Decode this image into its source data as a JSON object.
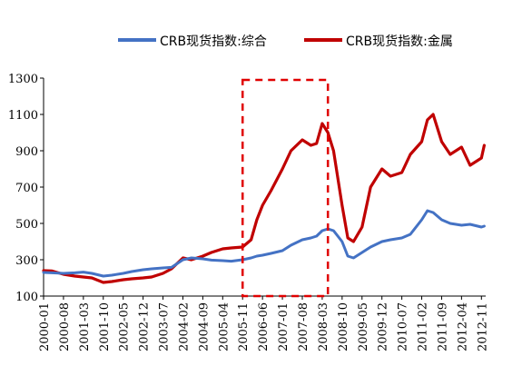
{
  "chart_data": {
    "type": "line",
    "title": "",
    "xlabel": "",
    "ylabel": "",
    "ylim": [
      100,
      1300
    ],
    "y_ticks": [
      "100",
      "300",
      "500",
      "700",
      "900",
      "1100",
      "1300"
    ],
    "x_tick_labels": [
      "2000-01",
      "2000-08",
      "2001-03",
      "2001-10",
      "2002-05",
      "2002-12",
      "2003-07",
      "2004-02",
      "2004-09",
      "2005-04",
      "2005-11",
      "2006-06",
      "2007-01",
      "2007-08",
      "2008-03",
      "2008-10",
      "2009-05",
      "2009-12",
      "2010-07",
      "2011-02",
      "2011-09",
      "2012-04",
      "2012-11"
    ],
    "grid": false,
    "legend_position": "top",
    "highlight_box": {
      "x_start": "2005-11",
      "x_end": "2008-05",
      "y_start": 100,
      "y_end": 1290,
      "color": "#e00000",
      "style": "dashed"
    },
    "x": [
      "2000-01",
      "2000-04",
      "2000-08",
      "2000-12",
      "2001-03",
      "2001-06",
      "2001-10",
      "2002-01",
      "2002-05",
      "2002-08",
      "2002-12",
      "2003-03",
      "2003-07",
      "2003-10",
      "2004-02",
      "2004-05",
      "2004-09",
      "2004-12",
      "2005-04",
      "2005-07",
      "2005-11",
      "2006-02",
      "2006-04",
      "2006-06",
      "2006-09",
      "2007-01",
      "2007-04",
      "2007-08",
      "2007-11",
      "2008-01",
      "2008-03",
      "2008-05",
      "2008-07",
      "2008-10",
      "2008-12",
      "2009-02",
      "2009-05",
      "2009-08",
      "2009-12",
      "2010-03",
      "2010-07",
      "2010-10",
      "2011-02",
      "2011-04",
      "2011-06",
      "2011-09",
      "2011-12",
      "2012-04",
      "2012-07",
      "2012-11",
      "2012-12"
    ],
    "series": [
      {
        "name": "CRB现货指数:综合",
        "color": "#4472c4",
        "values": [
          230,
          228,
          225,
          228,
          232,
          225,
          210,
          215,
          225,
          235,
          245,
          250,
          255,
          258,
          300,
          310,
          305,
          298,
          295,
          292,
          300,
          310,
          320,
          325,
          335,
          350,
          380,
          410,
          420,
          430,
          460,
          470,
          460,
          400,
          320,
          310,
          340,
          370,
          400,
          410,
          420,
          440,
          520,
          570,
          560,
          520,
          500,
          490,
          495,
          480,
          485
        ]
      },
      {
        "name": "CRB现货指数:金属",
        "color": "#c00000",
        "values": [
          240,
          238,
          220,
          210,
          205,
          200,
          175,
          180,
          190,
          195,
          200,
          205,
          225,
          250,
          310,
          300,
          320,
          340,
          360,
          365,
          370,
          410,
          520,
          600,
          680,
          800,
          900,
          960,
          930,
          940,
          1050,
          1000,
          900,
          600,
          420,
          400,
          480,
          700,
          800,
          760,
          780,
          880,
          950,
          1070,
          1100,
          950,
          880,
          920,
          820,
          860,
          930
        ]
      }
    ]
  }
}
